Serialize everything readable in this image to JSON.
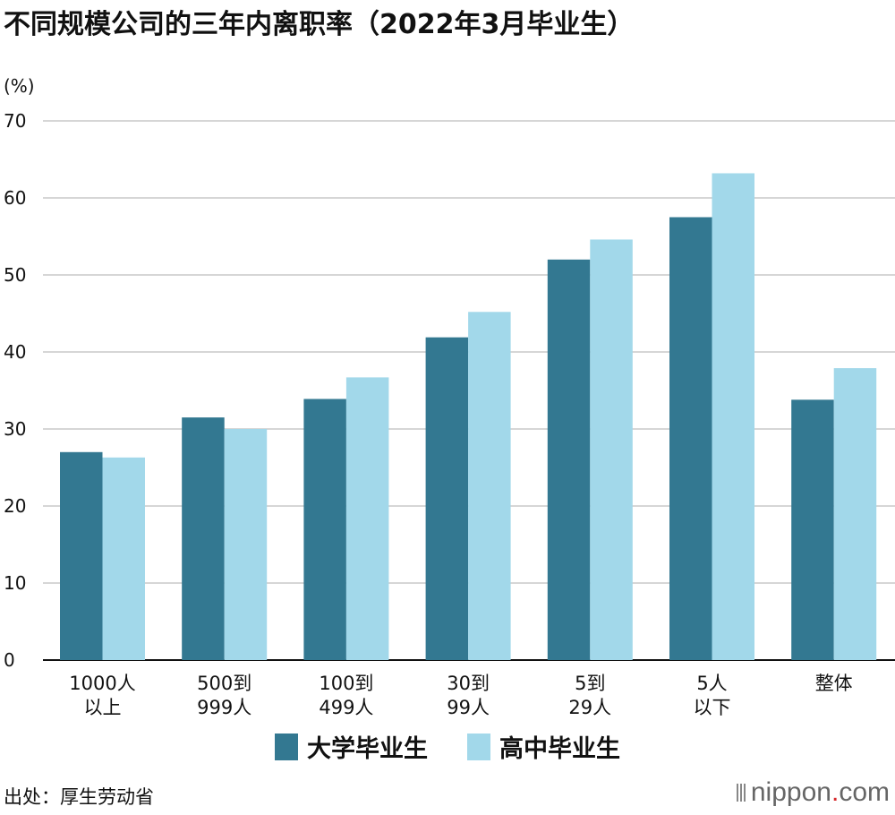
{
  "header": {
    "title": "不同规模公司的三年内离职率（2022年3月毕业生）",
    "unit": "(%)"
  },
  "footer": {
    "source": "出处：厚生劳动省",
    "brand_main": "nippon",
    "brand_dot": ".",
    "brand_tld": "com"
  },
  "colors": {
    "series_university": "#337891",
    "series_highschool": "#a2d8ea",
    "gridline": "#c8c8c8"
  },
  "chart_data": {
    "type": "bar",
    "title": "不同规模公司的三年内离职率（2022年3月毕业生）",
    "ylabel": "(%)",
    "ylim": [
      0,
      70
    ],
    "yticks": [
      0,
      10,
      20,
      30,
      40,
      50,
      60,
      70
    ],
    "grid": true,
    "legend_position": "bottom",
    "categories": [
      [
        "1000人",
        "以上"
      ],
      [
        "500到",
        "999人"
      ],
      [
        "100到",
        "499人"
      ],
      [
        "30到",
        "99人"
      ],
      [
        "5到",
        "29人"
      ],
      [
        "5人",
        "以下"
      ],
      [
        "整体"
      ]
    ],
    "series": [
      {
        "name": "大学毕业生",
        "values": [
          27.0,
          31.5,
          33.9,
          41.9,
          52.0,
          57.5,
          33.8
        ]
      },
      {
        "name": "高中毕业生",
        "values": [
          26.3,
          30.0,
          36.7,
          45.2,
          54.6,
          63.2,
          37.9
        ]
      }
    ]
  }
}
